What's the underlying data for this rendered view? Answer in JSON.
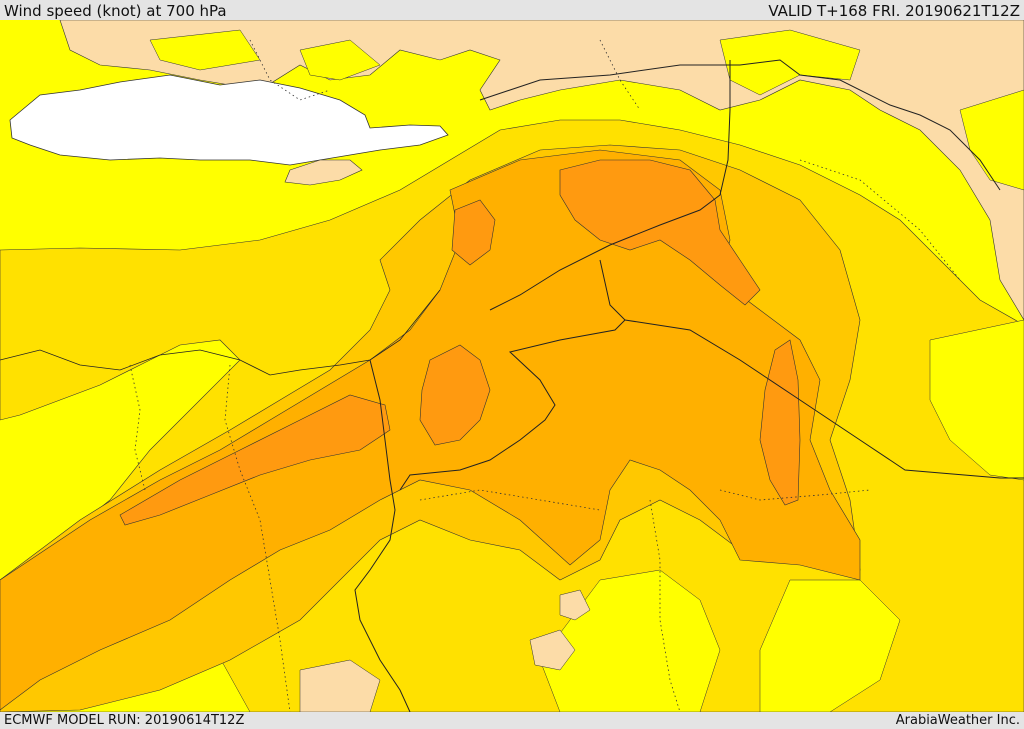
{
  "header": {
    "title": "Wind speed (knot) at 700 hPa",
    "valid": "VALID T+168 FRI. 20190621T12Z"
  },
  "footer": {
    "model_run": "ECMWF MODEL RUN: 20190614T12Z",
    "credit": "ArabiaWeather Inc."
  },
  "colors": {
    "band_lowest": "#ffff00",
    "band_low": "#ffe100",
    "band_mid": "#ffc800",
    "band_high": "#ffb000",
    "band_highest": "#ff9a10",
    "calm_land": "#fcdca8",
    "sea": "#ffffff",
    "frame": "#e4e4e4"
  }
}
